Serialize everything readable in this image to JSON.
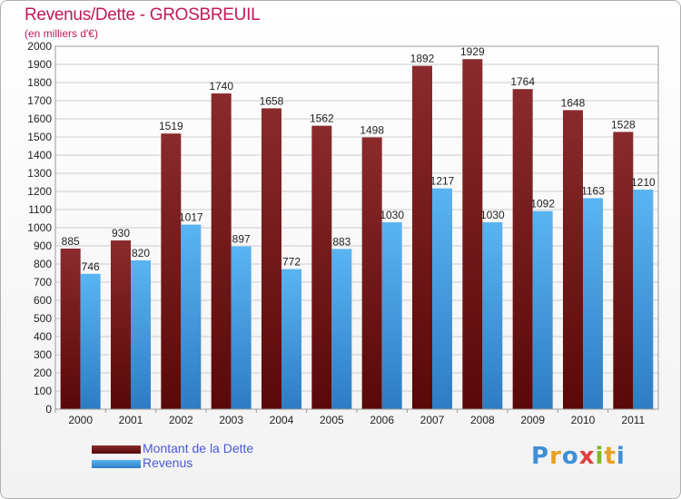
{
  "header": {
    "title": "Revenus/Dette - GROSBREUIL",
    "subtitle": "(en milliers d'€)"
  },
  "brand": {
    "logo_letters": [
      "P",
      "r",
      "o",
      "x",
      "i",
      "t",
      "i"
    ],
    "logo_colors": [
      "#3d8fd6",
      "#e8a020",
      "#3d8fd6",
      "#e04040",
      "#80b828",
      "#e8a020",
      "#3d8fd6"
    ]
  },
  "colors": {
    "dette": "#7a1f22",
    "revenus": "#4ea7ea",
    "grid": "#cccccc",
    "axis_text": "#222222"
  },
  "chart_data": {
    "type": "bar",
    "title": "Revenus/Dette - GROSBREUIL",
    "subtitle": "(en milliers d'€)",
    "categories": [
      "2000",
      "2001",
      "2002",
      "2003",
      "2004",
      "2005",
      "2006",
      "2007",
      "2008",
      "2009",
      "2010",
      "2011"
    ],
    "series": [
      {
        "name": "Montant de la Dette",
        "values": [
          885,
          930,
          1519,
          1740,
          1658,
          1562,
          1498,
          1892,
          1929,
          1764,
          1648,
          1528
        ]
      },
      {
        "name": "Revenus",
        "values": [
          746,
          820,
          1017,
          897,
          772,
          883,
          1030,
          1217,
          1030,
          1092,
          1163,
          1210
        ]
      }
    ],
    "ylim": [
      0,
      2000
    ],
    "yticks": [
      0,
      100,
      200,
      300,
      400,
      500,
      600,
      700,
      800,
      900,
      1000,
      1100,
      1200,
      1300,
      1400,
      1500,
      1600,
      1700,
      1800,
      1900,
      2000
    ],
    "grid": true,
    "legend_position": "bottom-left"
  }
}
